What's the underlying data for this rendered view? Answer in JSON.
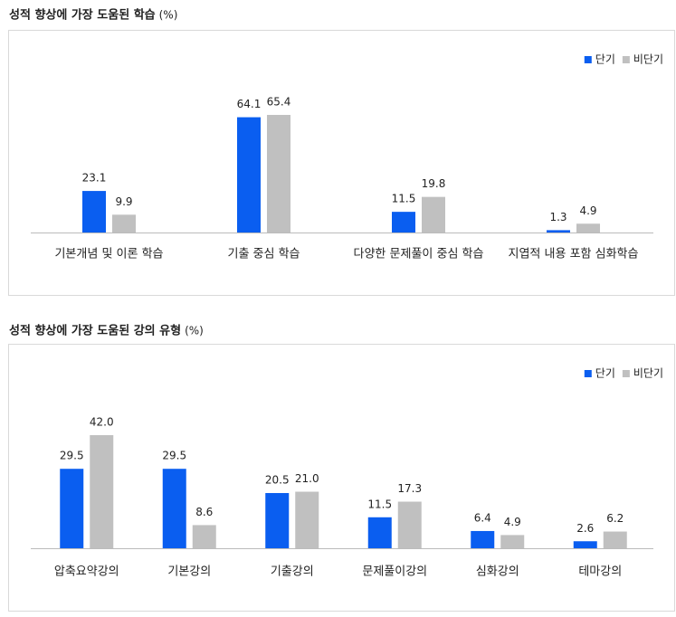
{
  "chart_data": [
    {
      "type": "bar",
      "title": "성적 향상에 가장 도움된 학습",
      "unit": "(%)",
      "categories": [
        "기본개념 및 이론 학습",
        "기출 중심 학습",
        "다양한 문제풀이 중심 학습",
        "지엽적 내용 포함 심화학습"
      ],
      "series": [
        {
          "name": "단기",
          "color": "#0a5ef0",
          "values": [
            23.1,
            64.1,
            11.5,
            1.3
          ]
        },
        {
          "name": "비단기",
          "color": "#c0c0c0",
          "values": [
            9.9,
            65.4,
            19.8,
            4.9
          ]
        }
      ],
      "legend": "top-right"
    },
    {
      "type": "bar",
      "title": "성적 향상에 가장 도움된 강의 유형",
      "unit": "(%)",
      "categories": [
        "압축요약강의",
        "기본강의",
        "기출강의",
        "문제풀이강의",
        "심화강의",
        "테마강의"
      ],
      "series": [
        {
          "name": "단기",
          "color": "#0a5ef0",
          "values": [
            29.5,
            29.5,
            20.5,
            11.5,
            6.4,
            2.6
          ]
        },
        {
          "name": "비단기",
          "color": "#c0c0c0",
          "values": [
            42.0,
            8.6,
            21.0,
            17.3,
            4.9,
            6.2
          ],
          "value_labels": [
            "42.0",
            "8.6",
            "21.0",
            "17.3",
            "4.9",
            "6.2"
          ]
        }
      ],
      "legend": "top-right"
    }
  ]
}
